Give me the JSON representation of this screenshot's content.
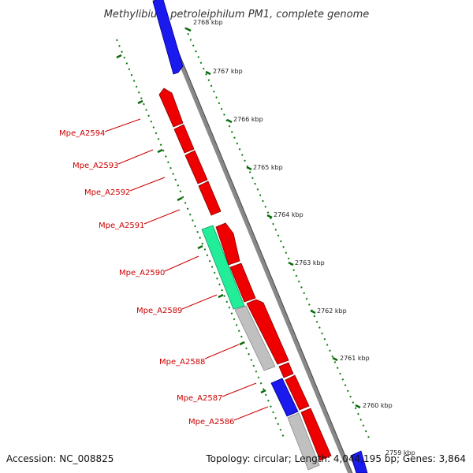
{
  "title": "Methylibium petroleiphilum PM1, complete genome",
  "kbp_labels": [
    "2768 kbp",
    "2767 kbp",
    "2766 kbp",
    "2765 kbp",
    "2764 kbp",
    "2763 kbp",
    "2762 kbp",
    "2761 kbp",
    "2760 kbp",
    "2759 kbp"
  ],
  "gene_labels": [
    "Mpe_A2594",
    "Mpe_A2593",
    "Mpe_A2592",
    "Mpe_A2591",
    "Mpe_A2590",
    "Mpe_A2589",
    "Mpe_A2588",
    "Mpe_A2587",
    "Mpe_A2586"
  ],
  "footer": {
    "accession": "Accession: NC_008825",
    "topology": "Topology: circular; Length: 4,044,195 bp; Genes: 3,864"
  },
  "colors": {
    "red_gene": "#ff0000",
    "blue_gene": "#0000ee",
    "green_gene": "#22ee99",
    "gray_gene": "#c0c0c0",
    "backbone": "#888888",
    "tick_green": "#007700",
    "label_red": "#cc0000"
  }
}
